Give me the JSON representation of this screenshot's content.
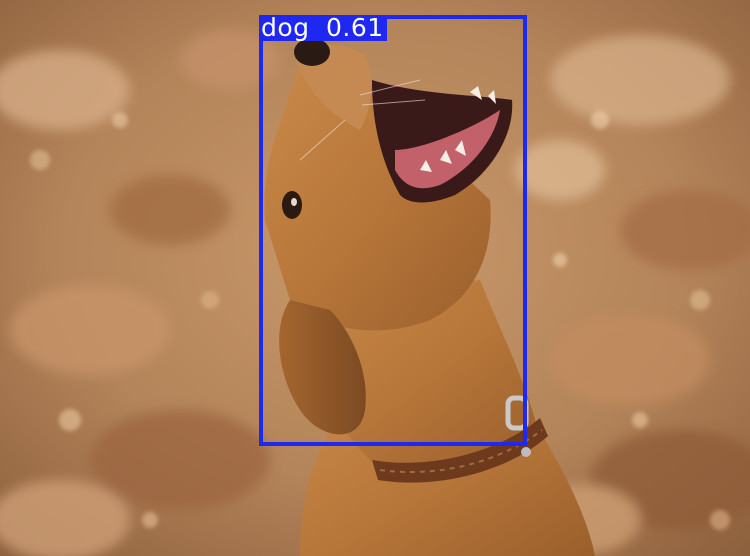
{
  "detection": {
    "class_name": "dog",
    "confidence": "0.61"
  },
  "colors": {
    "box": "#1e28f0",
    "label_text": "#ffffff"
  },
  "subject_icon": "dog-photo"
}
